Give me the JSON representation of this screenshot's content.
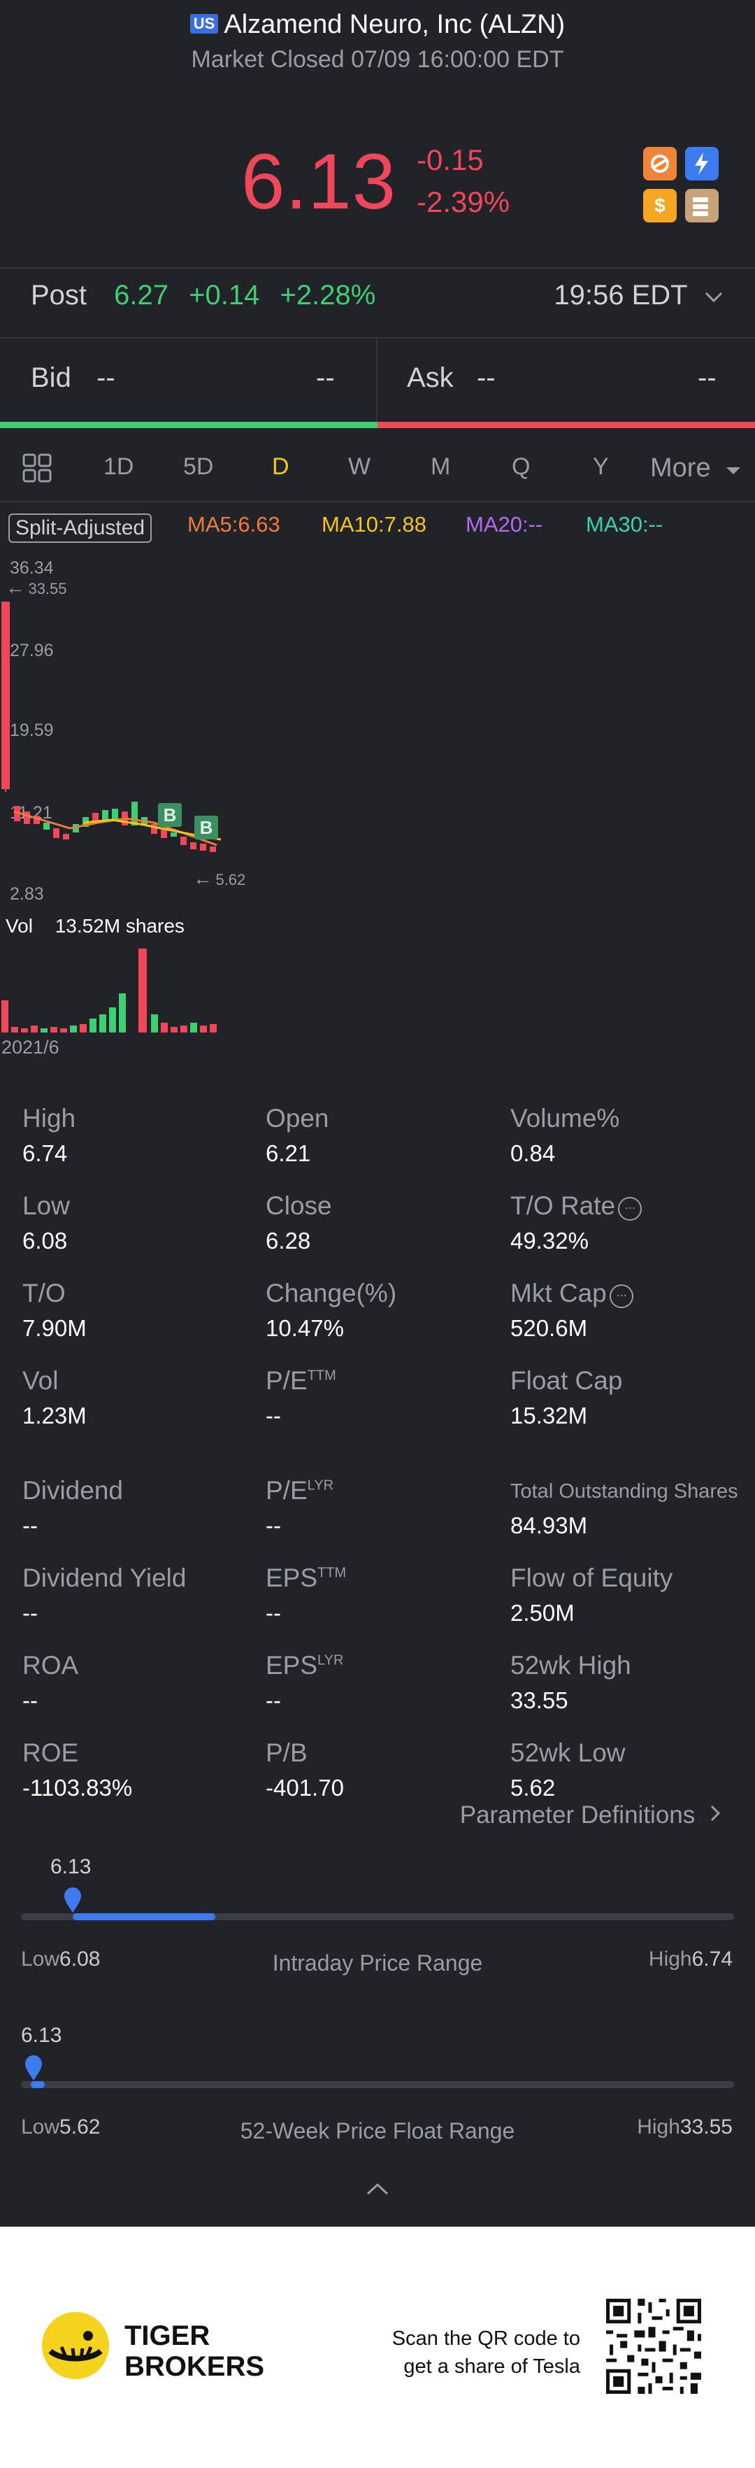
{
  "header": {
    "market_badge": "US",
    "title": "Alzamend Neuro, Inc (ALZN)",
    "status": "Market Closed 07/09 16:00:00 EDT"
  },
  "quote": {
    "price": "6.13",
    "change": "-0.15",
    "change_pct": "-2.39%"
  },
  "post_market": {
    "label": "Post",
    "price": "6.27",
    "change": "+0.14",
    "change_pct": "+2.28%",
    "time": "19:56 EDT"
  },
  "bid_ask": {
    "bid_label": "Bid",
    "bid_price": "--",
    "bid_size": "--",
    "ask_label": "Ask",
    "ask_price": "--",
    "ask_size": "--"
  },
  "period_tabs": [
    "1D",
    "5D",
    "D",
    "W",
    "M",
    "Q",
    "Y",
    "More"
  ],
  "active_tab": "D",
  "chart": {
    "split_label": "Split-Adjusted",
    "ma5": "MA5:6.63",
    "ma10": "MA10:7.88",
    "ma20": "MA20:--",
    "ma30": "MA30:--",
    "y_ticks": [
      "36.34",
      "27.96",
      "19.59",
      "11.21",
      "2.83"
    ],
    "high_marker": "33.55",
    "low_marker": "5.62",
    "buy_marker": "B",
    "vol_label": "Vol",
    "vol_value": "13.52M shares",
    "date_label": "2021/6",
    "colors": {
      "ma5": "#f07a3a",
      "ma10": "#f5c518",
      "ma20": "#b36bf0",
      "ma30": "#3ecfb0"
    }
  },
  "chart_data": {
    "type": "candlestick",
    "y_ticks": [
      36.34,
      27.96,
      19.59,
      11.21,
      2.83
    ],
    "annotations": {
      "high": 33.55,
      "low": 5.62
    },
    "volume_total": "13.52M shares",
    "x_start_label": "2021/6"
  },
  "stats": {
    "col1": [
      {
        "label": "High",
        "value": "6.74"
      },
      {
        "label": "Low",
        "value": "6.08"
      },
      {
        "label": "T/O",
        "value": "7.90M"
      },
      {
        "label": "Vol",
        "value": "1.23M"
      },
      {
        "label": "Dividend",
        "value": "--"
      },
      {
        "label": "Dividend Yield",
        "value": "--"
      },
      {
        "label": "ROA",
        "value": "--"
      },
      {
        "label": "ROE",
        "value": "-1103.83%"
      }
    ],
    "col2": [
      {
        "label": "Open",
        "value": "6.21"
      },
      {
        "label": "Close",
        "value": "6.28"
      },
      {
        "label": "Change(%)",
        "value": "10.47%"
      },
      {
        "label": "P/E",
        "sup": "TTM",
        "value": "--"
      },
      {
        "label": "P/E",
        "sup": "LYR",
        "value": "--"
      },
      {
        "label": "EPS",
        "sup": "TTM",
        "value": "--"
      },
      {
        "label": "EPS",
        "sup": "LYR",
        "value": "--"
      },
      {
        "label": "P/B",
        "value": "-401.70"
      }
    ],
    "col3": [
      {
        "label": "Volume%",
        "value": "0.84"
      },
      {
        "label": "T/O Rate",
        "value": "49.32%"
      },
      {
        "label": "Mkt Cap",
        "value": "520.6M"
      },
      {
        "label": "Float Cap",
        "value": "15.32M"
      },
      {
        "label": "Total Outstanding Shares",
        "value": "84.93M"
      },
      {
        "label": "Flow of Equity",
        "value": "2.50M"
      },
      {
        "label": "52wk High",
        "value": "33.55"
      },
      {
        "label": "52wk Low",
        "value": "5.62"
      }
    ],
    "param_link": "Parameter Definitions"
  },
  "ranges": {
    "intraday": {
      "current": "6.13",
      "low_label": "Low",
      "low": "6.08",
      "high_label": "High",
      "high": "6.74",
      "title": "Intraday Price Range",
      "fill_fraction": 0.2
    },
    "week52": {
      "current": "6.13",
      "low_label": "Low",
      "low": "5.62",
      "high_label": "High",
      "high": "33.55",
      "title": "52-Week Price Float Range",
      "fill_fraction": 0.02
    }
  },
  "footer": {
    "brand_line1": "TIGER",
    "brand_line2": "BROKERS",
    "promo_line1": "Scan the QR code to",
    "promo_line2": "get a share of Tesla"
  }
}
